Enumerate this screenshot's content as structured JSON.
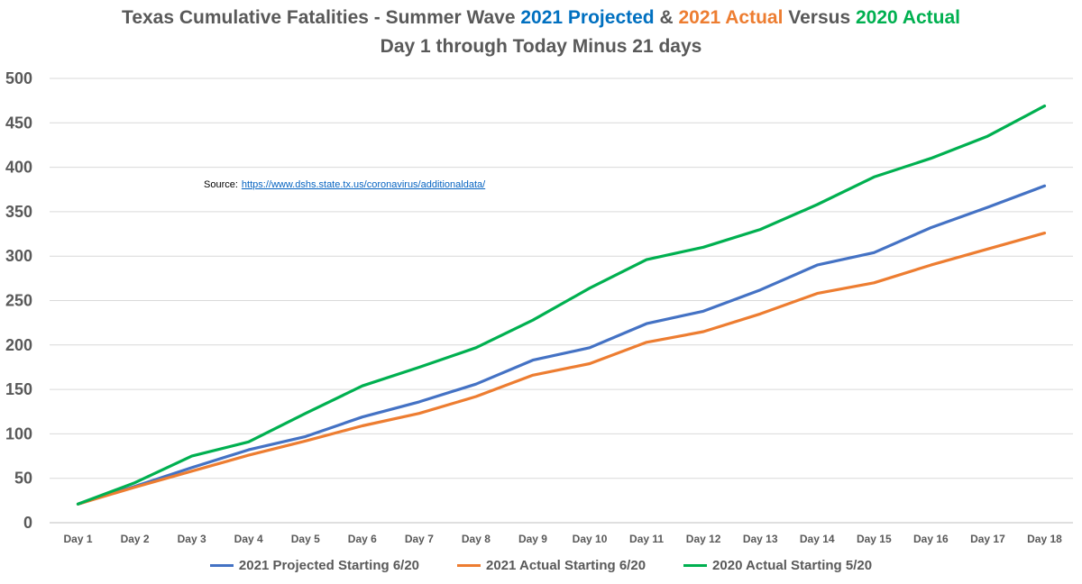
{
  "title": {
    "line1_part1": "Texas Cumulative Fatalities - Summer Wave ",
    "line1_part2": "2021 Projected",
    "line1_part3": " & ",
    "line1_part4": "2021 Actual",
    "line1_part5": "  Versus  ",
    "line1_part6": "2020 Actual",
    "line2": "Day 1  through  Today Minus 21 days"
  },
  "source": {
    "label": "Source:",
    "link": "https://www.dshs.state.tx.us/coronavirus/additionaldata/"
  },
  "chart_data": {
    "type": "line",
    "title": "Texas Cumulative Fatalities - Summer Wave 2021 Projected & 2021 Actual Versus 2020 Actual",
    "subtitle": "Day 1 through Today Minus 21 days",
    "xlabel": "",
    "ylabel": "",
    "ylim": [
      0,
      500
    ],
    "yticks": [
      0,
      50,
      100,
      150,
      200,
      250,
      300,
      350,
      400,
      450,
      500
    ],
    "grid": true,
    "legend_position": "bottom",
    "categories": [
      "Day 1",
      "Day 2",
      "Day 3",
      "Day 4",
      "Day 5",
      "Day 6",
      "Day 7",
      "Day 8",
      "Day 9",
      "Day 10",
      "Day 11",
      "Day 12",
      "Day 13",
      "Day 14",
      "Day 15",
      "Day 16",
      "Day 17",
      "Day 18"
    ],
    "series": [
      {
        "name": "2021 Projected Starting 6/20",
        "color": "#4472c4",
        "values": [
          21,
          41,
          62,
          82,
          97,
          119,
          136,
          156,
          183,
          197,
          224,
          238,
          262,
          290,
          304,
          332,
          355,
          379
        ]
      },
      {
        "name": "2021 Actual Starting 6/20",
        "color": "#ed7d31",
        "values": [
          21,
          40,
          58,
          76,
          92,
          109,
          123,
          142,
          166,
          179,
          203,
          215,
          235,
          258,
          270,
          290,
          308,
          326
        ]
      },
      {
        "name": "2020 Actual Starting 5/20",
        "color": "#00b050",
        "values": [
          21,
          45,
          75,
          91,
          123,
          154,
          175,
          197,
          228,
          264,
          296,
          310,
          330,
          358,
          389,
          410,
          435,
          469
        ]
      }
    ]
  }
}
